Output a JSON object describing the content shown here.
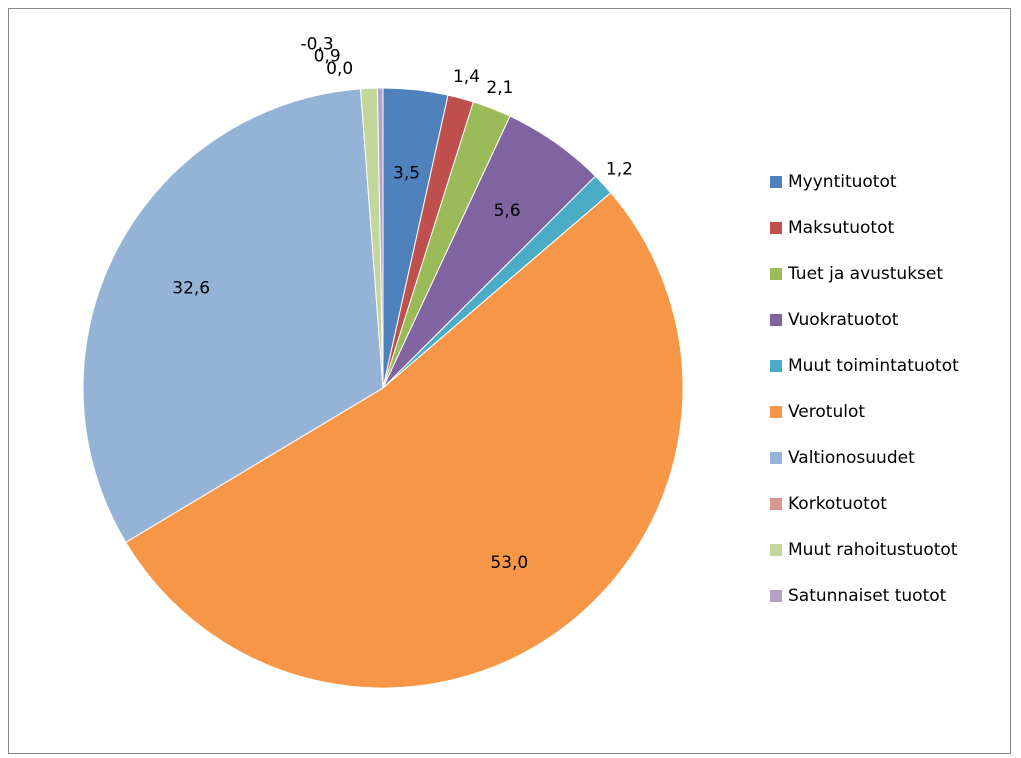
{
  "chart_data": {
    "type": "pie",
    "categories": [
      "Myyntituotot",
      "Maksutuotot",
      "Tuet ja avustukset",
      "Vuokratuotot",
      "Muut toimintatuotot",
      "Verotulot",
      "Valtionosuudet",
      "Korkotuotot",
      "Muut rahoitustuotot",
      "Satunnaiset tuotot"
    ],
    "values": [
      3.5,
      1.4,
      2.1,
      5.6,
      1.2,
      53.0,
      32.6,
      0.0,
      0.9,
      -0.3
    ],
    "value_labels": [
      "3,5",
      "1,4",
      "2,1",
      "5,6",
      "1,2",
      "53,0",
      "32,6",
      "0,0",
      "0,9",
      "-0,3"
    ],
    "colors": [
      "#4f81bd",
      "#c0504d",
      "#9bbb59",
      "#8064a2",
      "#4bacc6",
      "#f79646",
      "#95b3d7",
      "#d99694",
      "#c3d69b",
      "#b3a2c7"
    ],
    "legend": "right"
  }
}
